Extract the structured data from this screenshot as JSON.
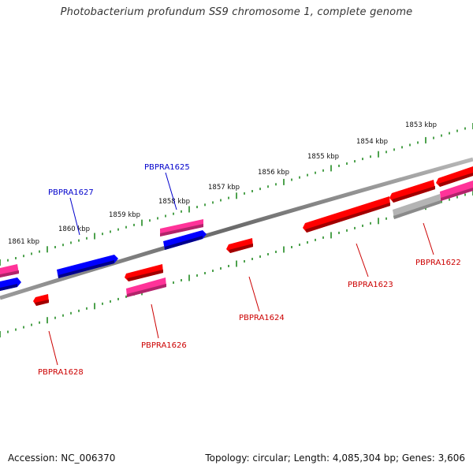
{
  "title": "Photobacterium profundum SS9 chromosome 1, complete genome",
  "footer": {
    "accession": "Accession: NC_006370",
    "stats": "Topology: circular; Length: 4,085,304 bp; Genes: 3,606"
  },
  "colors": {
    "forward": "#ff0000",
    "reverse": "#0000ff",
    "pink": "#ff3399",
    "grey": "#b4b4b4",
    "tick": "#228b22",
    "label_red": "#cc0000",
    "label_blue": "#0000cc"
  },
  "kbp_labels": [
    "1853 kbp",
    "1854 kbp",
    "1855 kbp",
    "1856 kbp",
    "1857 kbp",
    "1858 kbp",
    "1859 kbp",
    "1860 kbp",
    "1861 kbp"
  ],
  "genes": [
    {
      "name": "PBPRA1622",
      "color": "red"
    },
    {
      "name": "PBPRA1623",
      "color": "red"
    },
    {
      "name": "PBPRA1624",
      "color": "red"
    },
    {
      "name": "PBPRA1625",
      "color": "blue"
    },
    {
      "name": "PBPRA1626",
      "color": "red"
    },
    {
      "name": "PBPRA1627",
      "color": "blue"
    },
    {
      "name": "PBPRA1628",
      "color": "red"
    }
  ]
}
